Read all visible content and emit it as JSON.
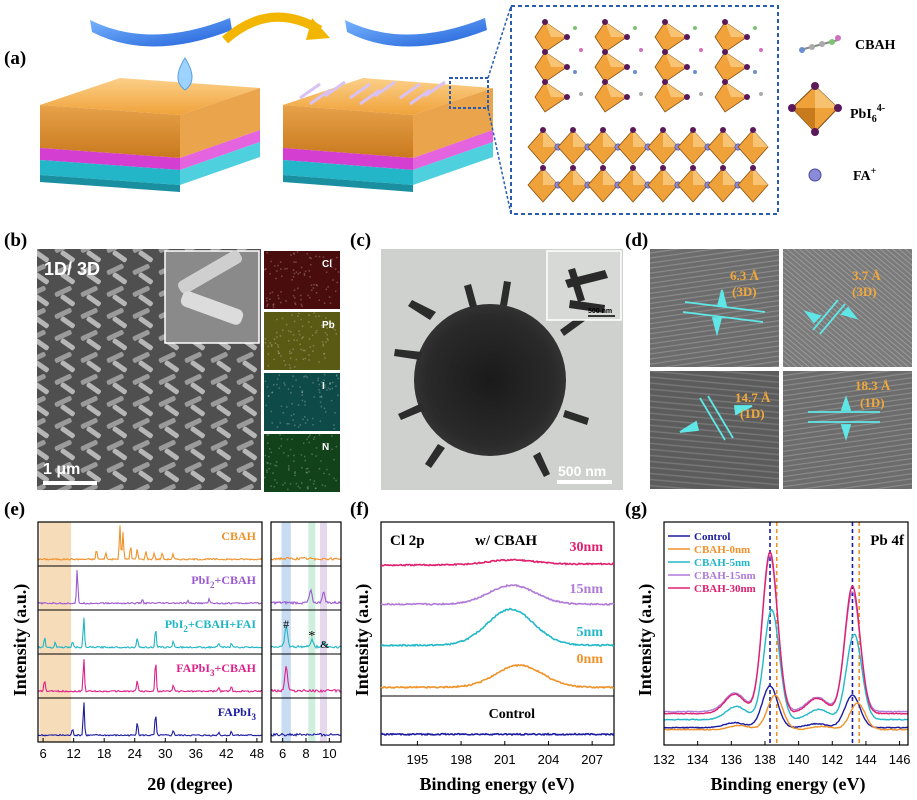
{
  "panels": {
    "a": {
      "label": "(a)",
      "legend": {
        "cbah": "CBAH",
        "pbi6_base": "PbI",
        "pbi6_sub": "6",
        "pbi6_sup": "4-",
        "fa": "FA",
        "fa_sup": "+"
      }
    },
    "b": {
      "label": "(b)",
      "title": "1D/ 3D",
      "scale": "1 μm",
      "eds": [
        "Cl",
        "Pb",
        "I",
        "N"
      ],
      "eds_colors": [
        "#4a0d0d",
        "#5a5a14",
        "#0e4a48",
        "#12421a"
      ]
    },
    "c": {
      "label": "(c)",
      "scale": "500 nm",
      "inset_scale": "500 nm"
    },
    "d": {
      "label": "(d)",
      "spacings": [
        {
          "value": "6.3 Å",
          "phase": "(3D)"
        },
        {
          "value": "3.7 Å",
          "phase": "(3D)"
        },
        {
          "value": "14.7 Å",
          "phase": "(1D)"
        },
        {
          "value": "18.3 Å",
          "phase": "(1D)"
        }
      ]
    },
    "e": {
      "label": "(e)",
      "ylabel": "Intensity (a.u.)",
      "xlabel": "2θ (degree)",
      "xticks_main": [
        "6",
        "12",
        "18",
        "24",
        "30",
        "36",
        "42",
        "48"
      ],
      "xticks_zoom": [
        "6",
        "8",
        "10"
      ],
      "markers": {
        "hash": "#",
        "star": "*",
        "amp": "&"
      },
      "series_labels": [
        {
          "base": "CBAH",
          "color": "#f0922a"
        },
        {
          "base": "PbI",
          "sub": "2",
          "rest": "+CBAH",
          "color": "#9b59d0"
        },
        {
          "base": "PbI",
          "sub": "2",
          "rest": "+CBAH+FAI",
          "color": "#1fb6c4"
        },
        {
          "base": "FAPbI",
          "sub": "3",
          "rest": "+CBAH",
          "color": "#e0208a"
        },
        {
          "base": "FAPbI",
          "sub": "3",
          "rest": "",
          "color": "#1c1ca0"
        }
      ]
    },
    "f": {
      "label": "(f)",
      "title": "Cl 2p",
      "subtitle": "w/ CBAH",
      "ylabel": "Intensity (a.u.)",
      "xlabel": "Binding energy (eV)",
      "xticks": [
        "195",
        "198",
        "201",
        "204",
        "207"
      ],
      "traces": [
        {
          "label": "30nm",
          "color": "#e0206e"
        },
        {
          "label": "15nm",
          "color": "#b07ad8"
        },
        {
          "label": "5nm",
          "color": "#22b8c8"
        },
        {
          "label": "0nm",
          "color": "#f0922a"
        },
        {
          "label": "Control",
          "color": "#1c1ca0"
        }
      ]
    },
    "g": {
      "label": "(g)",
      "title": "Pb 4f",
      "ylabel": "Intensity (a.u.)",
      "xlabel": "Binding energy (eV)",
      "xticks": [
        "132",
        "134",
        "136",
        "138",
        "140",
        "142",
        "144",
        "146"
      ],
      "legend": [
        {
          "label": "Control",
          "color": "#1c1ca0"
        },
        {
          "label": "CBAH-0nm",
          "color": "#f0922a"
        },
        {
          "label": "CBAH-5nm",
          "color": "#22b8c8"
        },
        {
          "label": "CBAH-15nm",
          "color": "#b07ad8"
        },
        {
          "label": "CBAH-30nm",
          "color": "#e0206e"
        }
      ]
    }
  },
  "chart_data": [
    {
      "type": "line",
      "panel": "e",
      "title": "",
      "xlabel": "2θ (degree)",
      "ylabel": "Intensity (a.u.)",
      "xlim": [
        5,
        49
      ],
      "series": [
        {
          "name": "CBAH",
          "peaks": [
            [
              16.5,
              0.3
            ],
            [
              18.3,
              0.2
            ],
            [
              21.1,
              1.0
            ],
            [
              21.7,
              0.8
            ],
            [
              23.2,
              0.4
            ],
            [
              24.5,
              0.3
            ],
            [
              26.2,
              0.25
            ],
            [
              27.8,
              0.2
            ],
            [
              29.4,
              0.2
            ],
            [
              31.5,
              0.15
            ]
          ]
        },
        {
          "name": "PbI2+CBAH",
          "peaks": [
            [
              12.7,
              1.0
            ],
            [
              25.5,
              0.12
            ],
            [
              38.6,
              0.15
            ],
            [
              34.5,
              0.08
            ]
          ]
        },
        {
          "name": "PbI2+CBAH+FAI",
          "peaks": [
            [
              6.3,
              0.3
            ],
            [
              8.4,
              0.15
            ],
            [
              11.8,
              0.18
            ],
            [
              14.0,
              0.9
            ],
            [
              24.5,
              0.3
            ],
            [
              28.1,
              0.55
            ],
            [
              31.6,
              0.2
            ],
            [
              40.5,
              0.12
            ],
            [
              43.0,
              0.15
            ]
          ]
        },
        {
          "name": "FAPbI3+CBAH",
          "peaks": [
            [
              6.3,
              0.35
            ],
            [
              14.0,
              1.0
            ],
            [
              24.5,
              0.35
            ],
            [
              28.1,
              0.95
            ],
            [
              31.6,
              0.2
            ],
            [
              40.5,
              0.12
            ],
            [
              43.0,
              0.15
            ]
          ]
        },
        {
          "name": "FAPbI3",
          "peaks": [
            [
              11.8,
              0.2
            ],
            [
              14.0,
              1.0
            ],
            [
              24.5,
              0.4
            ],
            [
              28.1,
              0.65
            ],
            [
              31.6,
              0.15
            ],
            [
              40.5,
              0.1
            ],
            [
              43.0,
              0.12
            ]
          ]
        }
      ]
    },
    {
      "type": "line",
      "panel": "e-zoom",
      "xlim": [
        5,
        11
      ],
      "xticks": [
        6,
        8,
        10
      ],
      "highlights": [
        {
          "range": [
            5.9,
            6.7
          ],
          "color": "#c7dcf2"
        },
        {
          "range": [
            8.2,
            8.8
          ],
          "color": "#cfeedd"
        },
        {
          "range": [
            9.2,
            9.8
          ],
          "color": "#e6d8ec"
        }
      ],
      "series": [
        {
          "name": "CBAH",
          "peaks": []
        },
        {
          "name": "PbI2+CBAH",
          "peaks": [
            [
              8.4,
              0.35
            ],
            [
              9.5,
              0.3
            ]
          ]
        },
        {
          "name": "PbI2+CBAH+FAI",
          "peaks": [
            [
              6.3,
              0.6
            ],
            [
              8.5,
              0.2
            ],
            [
              9.5,
              0.15
            ]
          ]
        },
        {
          "name": "FAPbI3+CBAH",
          "peaks": [
            [
              6.3,
              0.7
            ]
          ]
        },
        {
          "name": "FAPbI3",
          "peaks": []
        }
      ]
    },
    {
      "type": "line",
      "panel": "f",
      "title": "Cl 2p",
      "xlabel": "Binding energy (eV)",
      "ylabel": "Intensity (a.u.)",
      "xlim": [
        192.5,
        208.5
      ],
      "series": [
        {
          "name": "30nm",
          "peak_center": 201.5,
          "peak_height": 0.12
        },
        {
          "name": "15nm",
          "peak_center": 201.5,
          "peak_height": 0.5
        },
        {
          "name": "5nm",
          "peak_center": 201.4,
          "peak_height": 0.9
        },
        {
          "name": "0nm",
          "peak_center": 202.0,
          "peak_height": 0.55
        },
        {
          "name": "Control",
          "peak_center": 201.5,
          "peak_height": 0.0
        }
      ]
    },
    {
      "type": "line",
      "panel": "g",
      "title": "Pb 4f",
      "xlabel": "Binding energy (eV)",
      "ylabel": "Intensity (a.u.)",
      "xlim": [
        132,
        146.5
      ],
      "reference_lines": [
        {
          "x": 138.3,
          "color": "#1c1ca0"
        },
        {
          "x": 138.7,
          "color": "#f0922a"
        },
        {
          "x": 143.2,
          "color": "#1c1ca0"
        },
        {
          "x": 143.6,
          "color": "#f0922a"
        }
      ],
      "series": [
        {
          "name": "Control",
          "peaks": [
            [
              138.3,
              0.22
            ],
            [
              143.2,
              0.17
            ]
          ]
        },
        {
          "name": "CBAH-0nm",
          "peaks": [
            [
              138.6,
              0.18
            ],
            [
              143.5,
              0.14
            ]
          ]
        },
        {
          "name": "CBAH-5nm",
          "peaks": [
            [
              138.4,
              0.58
            ],
            [
              143.3,
              0.45
            ]
          ]
        },
        {
          "name": "CBAH-15nm",
          "peaks": [
            [
              138.3,
              0.82
            ],
            [
              143.2,
              0.63
            ]
          ]
        },
        {
          "name": "CBAH-30nm",
          "peaks": [
            [
              138.3,
              0.85
            ],
            [
              143.2,
              0.67
            ]
          ]
        }
      ]
    }
  ]
}
